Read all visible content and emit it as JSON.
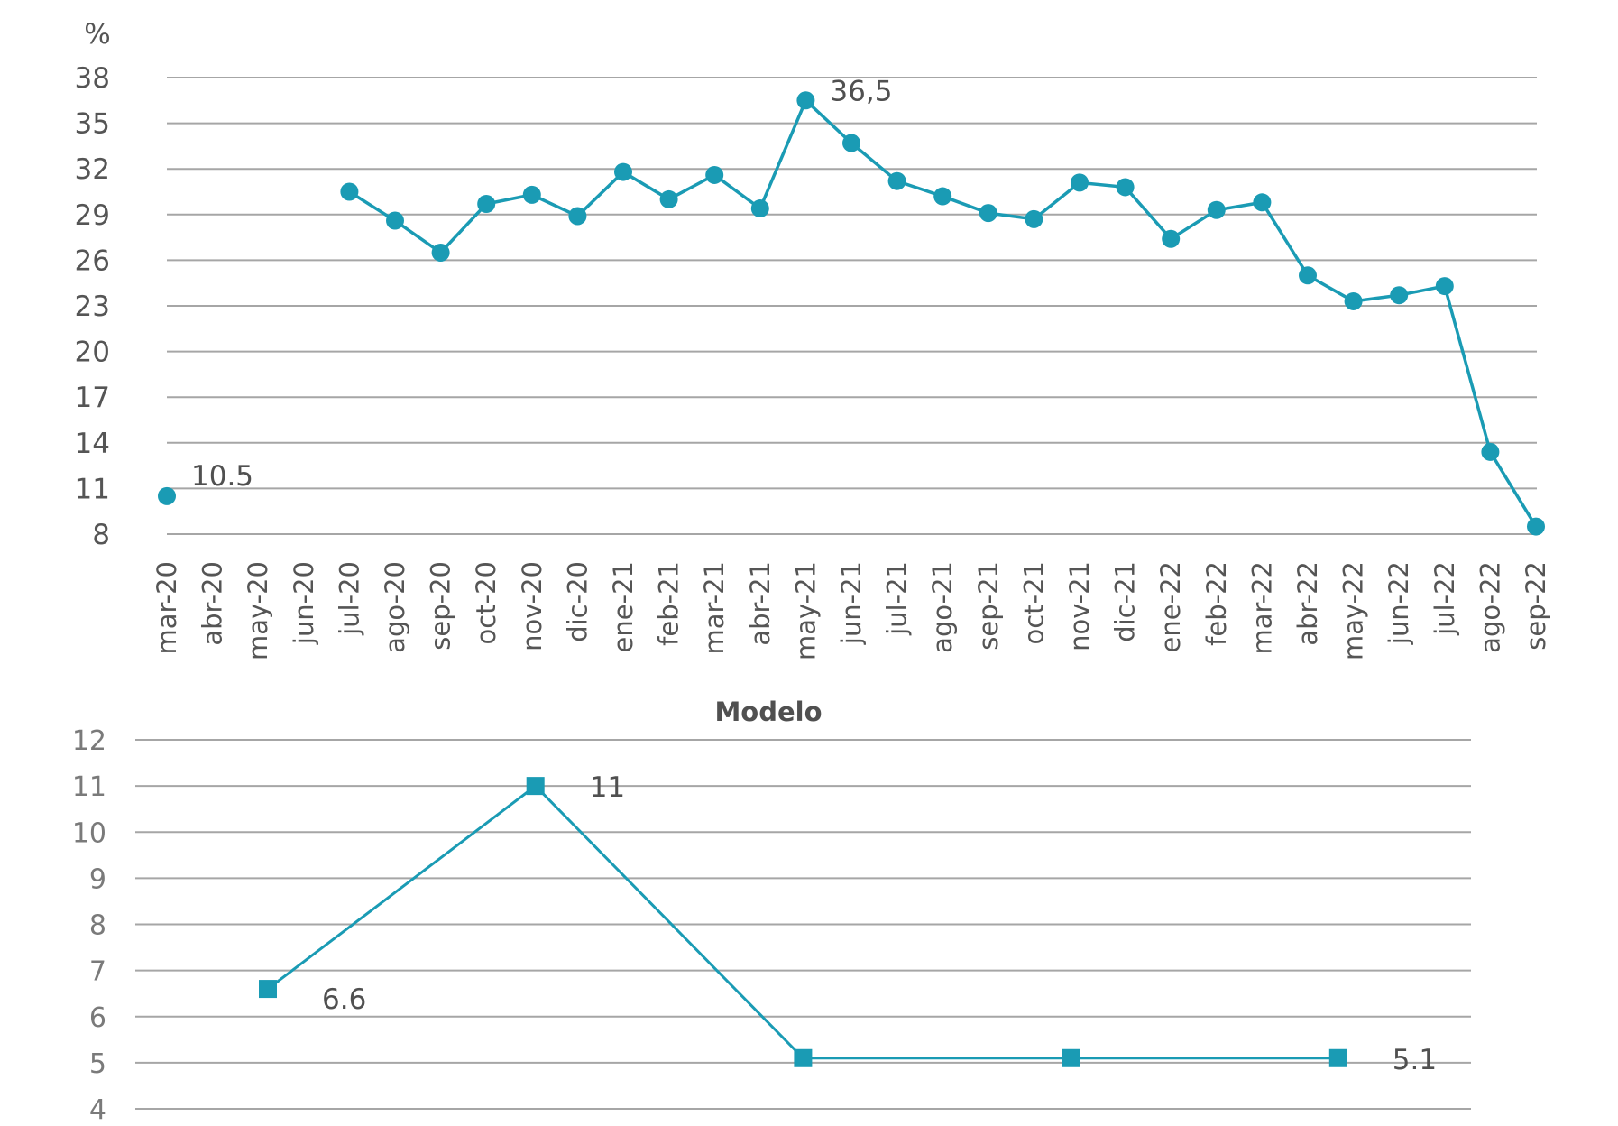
{
  "chart_data": [
    {
      "type": "line",
      "title": "",
      "ylabel": "%",
      "xlabel": "",
      "ylim": [
        8,
        38
      ],
      "yticks": [
        8,
        11,
        14,
        17,
        20,
        23,
        26,
        29,
        32,
        35,
        38
      ],
      "grid": true,
      "categories": [
        "mar-20",
        "abr-20",
        "may-20",
        "jun-20",
        "jul-20",
        "ago-20",
        "sep-20",
        "oct-20",
        "nov-20",
        "dic-20",
        "ene-21",
        "feb-21",
        "mar-21",
        "abr-21",
        "may-21",
        "jun-21",
        "jul-21",
        "ago-21",
        "sep-21",
        "oct-21",
        "nov-21",
        "dic-21",
        "ene-22",
        "feb-22",
        "mar-22",
        "abr-22",
        "may-22",
        "jun-22",
        "jul-22",
        "ago-22",
        "sep-22"
      ],
      "series": [
        {
          "name": "",
          "color": "#1a9bb4",
          "marker": "circle",
          "values": [
            10.5,
            null,
            null,
            null,
            30.5,
            28.6,
            26.5,
            29.7,
            30.3,
            28.9,
            31.8,
            30.0,
            31.6,
            29.4,
            36.5,
            33.7,
            31.2,
            30.2,
            29.1,
            28.7,
            31.1,
            30.8,
            27.4,
            29.3,
            29.8,
            25.0,
            23.3,
            23.7,
            24.3,
            13.4,
            8.5
          ]
        }
      ],
      "annotations": [
        {
          "index": 0,
          "text": "10.5"
        },
        {
          "index": 14,
          "text": "36,5"
        }
      ]
    },
    {
      "type": "line",
      "title": "Modelo",
      "xlabel": "",
      "ylabel": "",
      "ylim": [
        4,
        12
      ],
      "yticks": [
        4,
        5,
        6,
        7,
        8,
        9,
        10,
        11,
        12
      ],
      "grid": true,
      "categories": [
        "",
        "",
        "",
        "",
        ""
      ],
      "series": [
        {
          "name": "",
          "color": "#1a9bb4",
          "marker": "square",
          "values": [
            6.6,
            11,
            5.1,
            5.1,
            5.1
          ]
        }
      ],
      "annotations": [
        {
          "index": 0,
          "text": "6.6"
        },
        {
          "index": 1,
          "text": "11"
        },
        {
          "index": 4,
          "text": "5.1"
        }
      ]
    }
  ]
}
